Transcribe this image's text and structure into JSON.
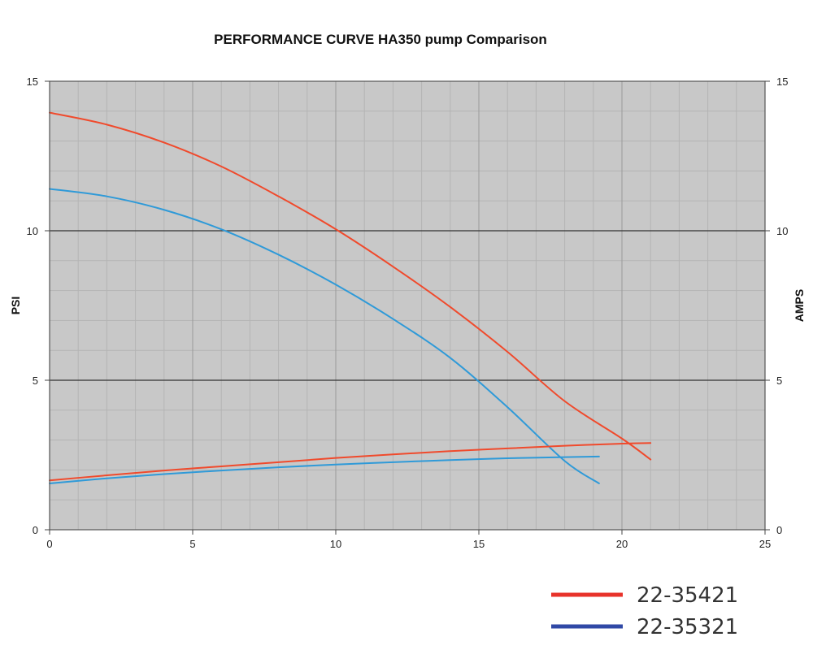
{
  "chart_data": {
    "type": "line",
    "title": "PERFORMANCE CURVE HA350 pump Comparison",
    "ylabel": "PSI",
    "y2label": "AMPS",
    "xlim": [
      0,
      25
    ],
    "ylim": [
      0,
      15
    ],
    "y2lim": [
      0,
      15
    ],
    "x_ticks": [
      "0",
      "5",
      "10",
      "15",
      "20",
      "25"
    ],
    "y_ticks": [
      "0",
      "5",
      "10",
      "15"
    ],
    "y2_ticks": [
      "0",
      "5",
      "10",
      "15"
    ],
    "grid": true,
    "background_color": "#c8c8c8",
    "legend_position": "bottom-right",
    "legend": [
      {
        "label": "22-35421",
        "color": "#e8322a"
      },
      {
        "label": "22-35321",
        "color": "#3049a6"
      }
    ],
    "series": [
      {
        "color": "#f04a2c",
        "axis": "left",
        "x": [
          0,
          2,
          4,
          6,
          8,
          10,
          12,
          14,
          16,
          18,
          20,
          21
        ],
        "y": [
          13.95,
          13.55,
          12.95,
          12.15,
          11.15,
          10.05,
          8.8,
          7.45,
          5.95,
          4.3,
          3.05,
          2.35
        ]
      },
      {
        "color": "#2f9ad8",
        "axis": "left",
        "x": [
          0,
          2,
          4,
          6,
          8,
          10,
          12,
          14,
          16,
          18,
          19.2
        ],
        "y": [
          11.4,
          11.15,
          10.7,
          10.05,
          9.2,
          8.2,
          7.05,
          5.75,
          4.1,
          2.3,
          1.55
        ]
      },
      {
        "color": "#f04a2c",
        "axis": "right",
        "x": [
          0,
          2,
          4,
          6,
          8,
          10,
          12,
          14,
          16,
          18,
          20,
          21
        ],
        "y": [
          1.65,
          1.82,
          1.98,
          2.12,
          2.26,
          2.4,
          2.52,
          2.63,
          2.72,
          2.81,
          2.88,
          2.9
        ]
      },
      {
        "color": "#2f9ad8",
        "axis": "right",
        "x": [
          0,
          2,
          4,
          6,
          8,
          10,
          12,
          14,
          16,
          18,
          19.2
        ],
        "y": [
          1.55,
          1.72,
          1.86,
          1.98,
          2.09,
          2.18,
          2.26,
          2.33,
          2.39,
          2.43,
          2.45
        ]
      }
    ]
  }
}
